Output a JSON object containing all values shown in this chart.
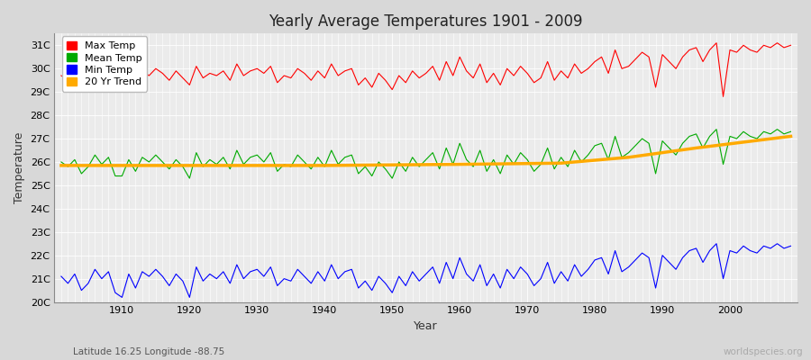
{
  "title": "Yearly Average Temperatures 1901 - 2009",
  "xlabel": "Year",
  "ylabel": "Temperature",
  "subtitle": "Latitude 16.25 Longitude -88.75",
  "watermark": "worldspecies.org",
  "years": [
    1901,
    1902,
    1903,
    1904,
    1905,
    1906,
    1907,
    1908,
    1909,
    1910,
    1911,
    1912,
    1913,
    1914,
    1915,
    1916,
    1917,
    1918,
    1919,
    1920,
    1921,
    1922,
    1923,
    1924,
    1925,
    1926,
    1927,
    1928,
    1929,
    1930,
    1931,
    1932,
    1933,
    1934,
    1935,
    1936,
    1937,
    1938,
    1939,
    1940,
    1941,
    1942,
    1943,
    1944,
    1945,
    1946,
    1947,
    1948,
    1949,
    1950,
    1951,
    1952,
    1953,
    1954,
    1955,
    1956,
    1957,
    1958,
    1959,
    1960,
    1961,
    1962,
    1963,
    1964,
    1965,
    1966,
    1967,
    1968,
    1969,
    1970,
    1971,
    1972,
    1973,
    1974,
    1975,
    1976,
    1977,
    1978,
    1979,
    1980,
    1981,
    1982,
    1983,
    1984,
    1985,
    1986,
    1987,
    1988,
    1989,
    1990,
    1991,
    1992,
    1993,
    1994,
    1995,
    1996,
    1997,
    1998,
    1999,
    2000,
    2001,
    2002,
    2003,
    2004,
    2005,
    2006,
    2007,
    2008,
    2009
  ],
  "max_temp": [
    29.7,
    29.5,
    29.8,
    29.3,
    29.6,
    30.0,
    29.7,
    29.9,
    29.2,
    29.4,
    29.8,
    29.4,
    29.9,
    29.7,
    30.0,
    29.8,
    29.5,
    29.9,
    29.6,
    29.3,
    30.1,
    29.6,
    29.8,
    29.7,
    29.9,
    29.5,
    30.2,
    29.7,
    29.9,
    30.0,
    29.8,
    30.1,
    29.4,
    29.7,
    29.6,
    30.0,
    29.8,
    29.5,
    29.9,
    29.6,
    30.2,
    29.7,
    29.9,
    30.0,
    29.3,
    29.6,
    29.2,
    29.8,
    29.5,
    29.1,
    29.7,
    29.4,
    29.9,
    29.6,
    29.8,
    30.1,
    29.5,
    30.3,
    29.7,
    30.5,
    29.9,
    29.6,
    30.2,
    29.4,
    29.8,
    29.3,
    30.0,
    29.7,
    30.1,
    29.8,
    29.4,
    29.6,
    30.3,
    29.5,
    29.9,
    29.6,
    30.2,
    29.8,
    30.0,
    30.3,
    30.5,
    29.8,
    30.8,
    30.0,
    30.1,
    30.4,
    30.7,
    30.5,
    29.2,
    30.6,
    30.3,
    30.0,
    30.5,
    30.8,
    30.9,
    30.3,
    30.8,
    31.1,
    28.8,
    30.8,
    30.7,
    31.0,
    30.8,
    30.7,
    31.0,
    30.9,
    31.1,
    30.9,
    31.0
  ],
  "mean_temp": [
    26.0,
    25.8,
    26.1,
    25.5,
    25.8,
    26.3,
    25.9,
    26.2,
    25.4,
    25.4,
    26.1,
    25.6,
    26.2,
    26.0,
    26.3,
    26.0,
    25.7,
    26.1,
    25.8,
    25.3,
    26.4,
    25.8,
    26.1,
    25.9,
    26.2,
    25.7,
    26.5,
    25.9,
    26.2,
    26.3,
    26.0,
    26.4,
    25.6,
    25.9,
    25.8,
    26.3,
    26.0,
    25.7,
    26.2,
    25.8,
    26.5,
    25.9,
    26.2,
    26.3,
    25.5,
    25.8,
    25.4,
    26.0,
    25.7,
    25.3,
    26.0,
    25.6,
    26.2,
    25.8,
    26.1,
    26.4,
    25.7,
    26.6,
    25.9,
    26.8,
    26.1,
    25.8,
    26.5,
    25.6,
    26.1,
    25.5,
    26.3,
    25.9,
    26.4,
    26.1,
    25.6,
    25.9,
    26.6,
    25.7,
    26.2,
    25.8,
    26.5,
    26.0,
    26.3,
    26.7,
    26.8,
    26.1,
    27.1,
    26.2,
    26.4,
    26.7,
    27.0,
    26.8,
    25.5,
    26.9,
    26.6,
    26.3,
    26.8,
    27.1,
    27.2,
    26.6,
    27.1,
    27.4,
    25.9,
    27.1,
    27.0,
    27.3,
    27.1,
    27.0,
    27.3,
    27.2,
    27.4,
    27.2,
    27.3
  ],
  "min_temp": [
    21.1,
    20.8,
    21.2,
    20.5,
    20.8,
    21.4,
    21.0,
    21.3,
    20.4,
    20.2,
    21.2,
    20.6,
    21.3,
    21.1,
    21.4,
    21.1,
    20.7,
    21.2,
    20.9,
    20.2,
    21.5,
    20.9,
    21.2,
    21.0,
    21.3,
    20.8,
    21.6,
    21.0,
    21.3,
    21.4,
    21.1,
    21.5,
    20.7,
    21.0,
    20.9,
    21.4,
    21.1,
    20.8,
    21.3,
    20.9,
    21.6,
    21.0,
    21.3,
    21.4,
    20.6,
    20.9,
    20.5,
    21.1,
    20.8,
    20.4,
    21.1,
    20.7,
    21.3,
    20.9,
    21.2,
    21.5,
    20.8,
    21.7,
    21.0,
    21.9,
    21.2,
    20.9,
    21.6,
    20.7,
    21.2,
    20.6,
    21.4,
    21.0,
    21.5,
    21.2,
    20.7,
    21.0,
    21.7,
    20.8,
    21.3,
    20.9,
    21.6,
    21.1,
    21.4,
    21.8,
    21.9,
    21.2,
    22.2,
    21.3,
    21.5,
    21.8,
    22.1,
    21.9,
    20.6,
    22.0,
    21.7,
    21.4,
    21.9,
    22.2,
    22.3,
    21.7,
    22.2,
    22.5,
    21.0,
    22.2,
    22.1,
    22.4,
    22.2,
    22.1,
    22.4,
    22.3,
    22.5,
    22.3,
    22.4
  ],
  "trend_x": [
    1901,
    1920,
    1940,
    1960,
    1975,
    1985,
    1995,
    2009
  ],
  "trend_y": [
    25.85,
    25.85,
    25.85,
    25.9,
    25.95,
    26.2,
    26.6,
    27.1
  ],
  "ylim": [
    20.0,
    31.5
  ],
  "yticks": [
    20.0,
    21.0,
    22.0,
    23.0,
    24.0,
    25.0,
    26.0,
    27.0,
    28.0,
    29.0,
    30.0,
    31.0
  ],
  "ytick_labels": [
    "20C",
    "21C",
    "22C",
    "23C",
    "24C",
    "25C",
    "26C",
    "27C",
    "28C",
    "29C",
    "30C",
    "31C"
  ],
  "xlim": [
    1900,
    2010
  ],
  "xticks": [
    1910,
    1920,
    1930,
    1940,
    1950,
    1960,
    1970,
    1980,
    1990,
    2000
  ],
  "max_color": "#ff0000",
  "mean_color": "#00aa00",
  "min_color": "#0000ff",
  "trend_color": "#ffaa00",
  "bg_color": "#d8d8d8",
  "plot_bg_color": "#ebebeb",
  "grid_color": "#ffffff",
  "legend_items": [
    "Max Temp",
    "Mean Temp",
    "Min Temp",
    "20 Yr Trend"
  ],
  "legend_colors": [
    "#ff0000",
    "#00aa00",
    "#0000ff",
    "#ffaa00"
  ]
}
